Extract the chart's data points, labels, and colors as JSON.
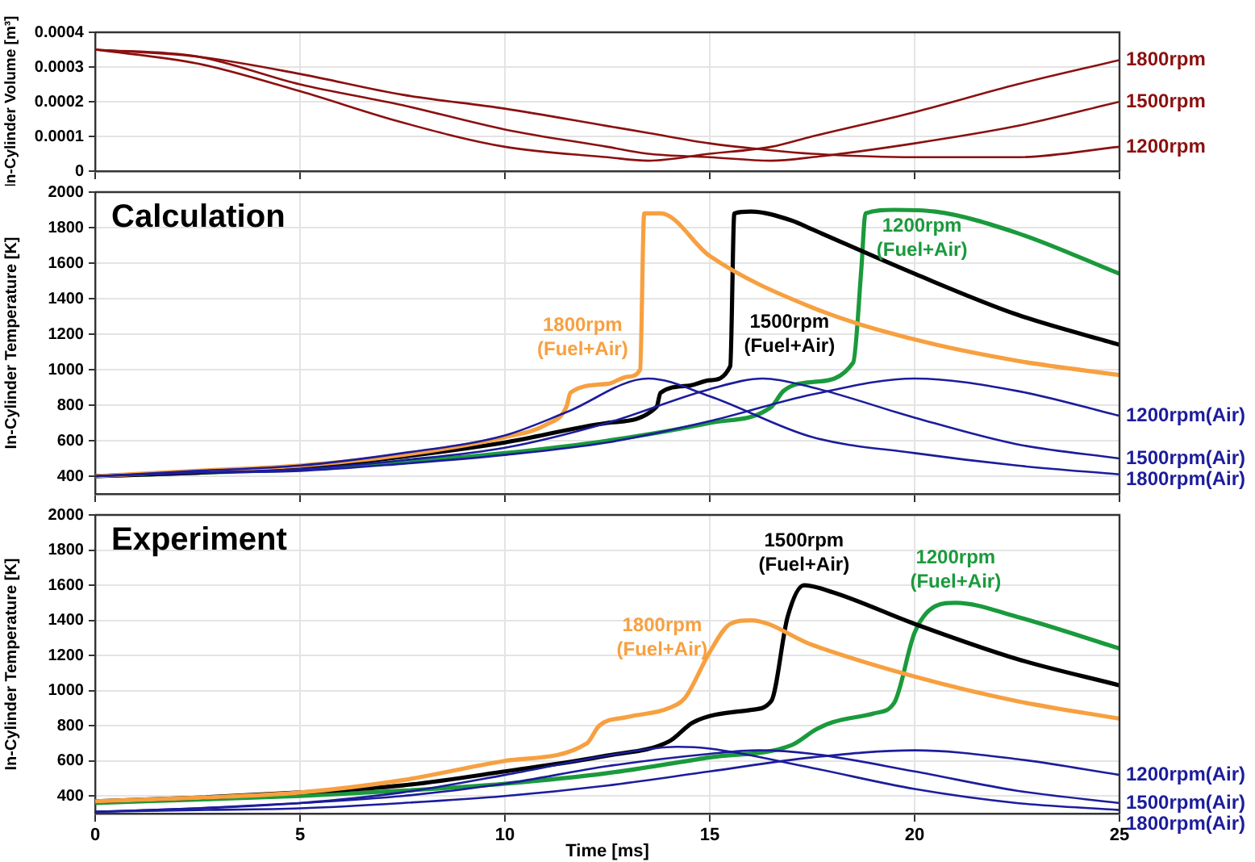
{
  "chart_data": [
    {
      "type": "line",
      "ylabel": "In-Cylinder Volume [m³]",
      "xlim": [
        0,
        25
      ],
      "xticks": [
        0,
        5,
        10,
        15,
        20,
        25
      ],
      "ylim": [
        0,
        0.0004
      ],
      "yticks": [
        0,
        0.0001,
        0.0002,
        0.0003,
        0.0004
      ],
      "grid": true,
      "legend": false,
      "tick_labels": "y",
      "series": [
        {
          "name": "1800rpm",
          "color": "#8b1010",
          "x": [
            0,
            2.5,
            5,
            7.5,
            10,
            12.5,
            13.5,
            15,
            16.5,
            17.5,
            20,
            22.5,
            25
          ],
          "values": [
            0.00035,
            0.00031,
            0.00023,
            0.00014,
            7e-05,
            4e-05,
            3e-05,
            5e-05,
            7e-05,
            0.0001,
            0.00017,
            0.00025,
            0.00032
          ]
        },
        {
          "name": "1500rpm",
          "color": "#8b1010",
          "x": [
            0,
            2.5,
            5,
            7.5,
            10,
            12.5,
            13.5,
            15,
            16.5,
            17.5,
            20,
            22.5,
            25
          ],
          "values": [
            0.00035,
            0.00033,
            0.00025,
            0.00019,
            0.00012,
            7e-05,
            5e-05,
            4e-05,
            3e-05,
            4e-05,
            8e-05,
            0.00013,
            0.0002
          ]
        },
        {
          "name": "1200rpm",
          "color": "#8b1010",
          "x": [
            0,
            2.5,
            5,
            7.5,
            10,
            12.5,
            13.5,
            15,
            16.5,
            17.5,
            20,
            22.5,
            25
          ],
          "values": [
            0.00035,
            0.00033,
            0.00028,
            0.00022,
            0.00018,
            0.00013,
            0.00011,
            8e-05,
            6e-05,
            5e-05,
            4e-05,
            4e-05,
            7e-05
          ]
        }
      ]
    },
    {
      "type": "line",
      "title": "Calculation",
      "ylabel": "In-Cylinder Temperature [K]",
      "xlim": [
        0,
        25
      ],
      "xticks": [
        0,
        5,
        10,
        15,
        20,
        25
      ],
      "ylim": [
        300,
        2000
      ],
      "yticks": [
        400,
        600,
        800,
        1000,
        1200,
        1400,
        1600,
        1800,
        2000
      ],
      "grid": true,
      "legend": false,
      "tick_labels": "y",
      "annotations": [
        {
          "text": "1800rpm\n(Fuel+Air)",
          "x": 13.32,
          "y": 1180
        },
        {
          "text": "1500rpm\n(Fuel+Air)",
          "x": 15.521,
          "y": 1200
        },
        {
          "text": "1200rpm\n(Fuel+Air)",
          "x": 18.755,
          "y": 1740
        }
      ],
      "series": [
        {
          "color": "#f7a040",
          "x": [
            0,
            2.5,
            5,
            7.5,
            10,
            11,
            11.5,
            11.6,
            12.5,
            13,
            13.3,
            13.4,
            13.8,
            15,
            17.5,
            20,
            22.5,
            25
          ],
          "values": [
            400,
            430,
            460,
            520,
            620,
            690,
            790,
            870,
            920,
            960,
            1000,
            1880,
            1880,
            1640,
            1350,
            1170,
            1050,
            970
          ]
        },
        {
          "color": "#000000",
          "x": [
            0,
            2.5,
            5,
            7.5,
            10,
            12.5,
            13.7,
            13.8,
            14.5,
            15,
            15.5,
            15.6,
            16,
            17,
            17.5,
            20,
            22.5,
            25
          ],
          "values": [
            400,
            420,
            450,
            510,
            590,
            700,
            790,
            870,
            910,
            940,
            1020,
            1880,
            1890,
            1840,
            1790,
            1540,
            1310,
            1140
          ]
        },
        {
          "color": "#1a9a3c",
          "x": [
            0,
            2.5,
            5,
            7.5,
            10,
            12.5,
            15,
            16.5,
            16.8,
            17.5,
            18.5,
            18.7,
            18.8,
            19.5,
            20.5,
            22.5,
            25
          ],
          "values": [
            400,
            420,
            440,
            480,
            530,
            600,
            700,
            790,
            880,
            930,
            1040,
            1570,
            1880,
            1900,
            1890,
            1770,
            1540
          ]
        },
        {
          "name": "1200rpm(Air)",
          "color": "#1c1c9c",
          "x": [
            0,
            2.5,
            5,
            7.5,
            10,
            12.5,
            15,
            17.5,
            20,
            22.5,
            25
          ],
          "values": [
            400,
            420,
            430,
            470,
            520,
            590,
            710,
            860,
            950,
            880,
            740
          ]
        },
        {
          "name": "1500rpm(Air)",
          "color": "#1c1c9c",
          "x": [
            0,
            2.5,
            5,
            7.5,
            10,
            12.5,
            15,
            16.3,
            17.5,
            20,
            22.5,
            25
          ],
          "values": [
            400,
            420,
            440,
            490,
            560,
            700,
            890,
            950,
            900,
            730,
            580,
            500
          ]
        },
        {
          "name": "1800rpm(Air)",
          "color": "#1c1c9c",
          "x": [
            0,
            2.5,
            5,
            7.5,
            10,
            11.5,
            13.5,
            15,
            17.5,
            20,
            22.5,
            25
          ],
          "values": [
            400,
            430,
            460,
            530,
            630,
            760,
            950,
            850,
            620,
            530,
            460,
            410
          ]
        }
      ]
    },
    {
      "type": "line",
      "title": "Experiment",
      "ylabel": "In-Cylinder Temperature [K]",
      "xlabel": "Time [ms]",
      "xlim": [
        0,
        25
      ],
      "xticks": [
        0,
        5,
        10,
        15,
        20,
        25
      ],
      "ylim": [
        300,
        2000
      ],
      "yticks": [
        400,
        600,
        800,
        1000,
        1200,
        1400,
        1600,
        1800,
        2000
      ],
      "grid": true,
      "legend": false,
      "annotations": [
        {
          "text": "1800rpm\n(Fuel+Air)",
          "x": 15.26,
          "y": 1300
        },
        {
          "text": "1500rpm\n(Fuel+Air)",
          "x": 17.3,
          "y": 1600
        },
        {
          "text": "1200rpm\n(Fuel+Air)",
          "x": 21,
          "y": 1500
        }
      ],
      "series": [
        {
          "color": "#f7a040",
          "x": [
            0,
            2.5,
            5,
            7.5,
            10,
            12,
            12.3,
            13,
            14,
            14.4,
            15,
            15.5,
            16,
            17.5,
            20,
            22.5,
            25
          ],
          "values": [
            370,
            390,
            420,
            490,
            600,
            700,
            800,
            850,
            900,
            960,
            1220,
            1380,
            1400,
            1260,
            1080,
            940,
            840
          ]
        },
        {
          "color": "#000000",
          "x": [
            0,
            2.5,
            5,
            7.5,
            10,
            12.5,
            14,
            14.6,
            16,
            16.5,
            16.9,
            17.3,
            18,
            20,
            22.5,
            25
          ],
          "values": [
            370,
            390,
            420,
            460,
            540,
            630,
            710,
            820,
            890,
            940,
            1420,
            1600,
            1560,
            1380,
            1180,
            1030
          ]
        },
        {
          "color": "#1a9a3c",
          "x": [
            0,
            2.5,
            5,
            7.5,
            10,
            12.5,
            15,
            17,
            17.6,
            18,
            19,
            19.5,
            20,
            20.5,
            21,
            22.5,
            25
          ],
          "values": [
            360,
            380,
            400,
            430,
            470,
            530,
            620,
            690,
            780,
            820,
            870,
            930,
            1330,
            1480,
            1500,
            1420,
            1240
          ]
        },
        {
          "name": "1200rpm(Air)",
          "color": "#1c1c9c",
          "x": [
            0,
            2.5,
            5,
            7.5,
            10,
            12.5,
            15,
            17.5,
            20,
            22.5,
            25
          ],
          "values": [
            310,
            320,
            330,
            360,
            400,
            460,
            540,
            620,
            660,
            610,
            520
          ]
        },
        {
          "name": "1500rpm(Air)",
          "color": "#1c1c9c",
          "x": [
            0,
            2.5,
            5,
            7.5,
            10,
            12.5,
            15,
            16.2,
            17.5,
            20,
            22.5,
            25
          ],
          "values": [
            310,
            330,
            360,
            400,
            470,
            570,
            640,
            660,
            640,
            540,
            430,
            360
          ]
        },
        {
          "name": "1800rpm(Air)",
          "color": "#1c1c9c",
          "x": [
            0,
            2.5,
            5,
            7.5,
            10,
            12.5,
            14.2,
            15,
            17.5,
            20,
            22.5,
            25
          ],
          "values": [
            310,
            330,
            360,
            420,
            520,
            630,
            680,
            670,
            560,
            440,
            360,
            320
          ]
        }
      ]
    }
  ]
}
